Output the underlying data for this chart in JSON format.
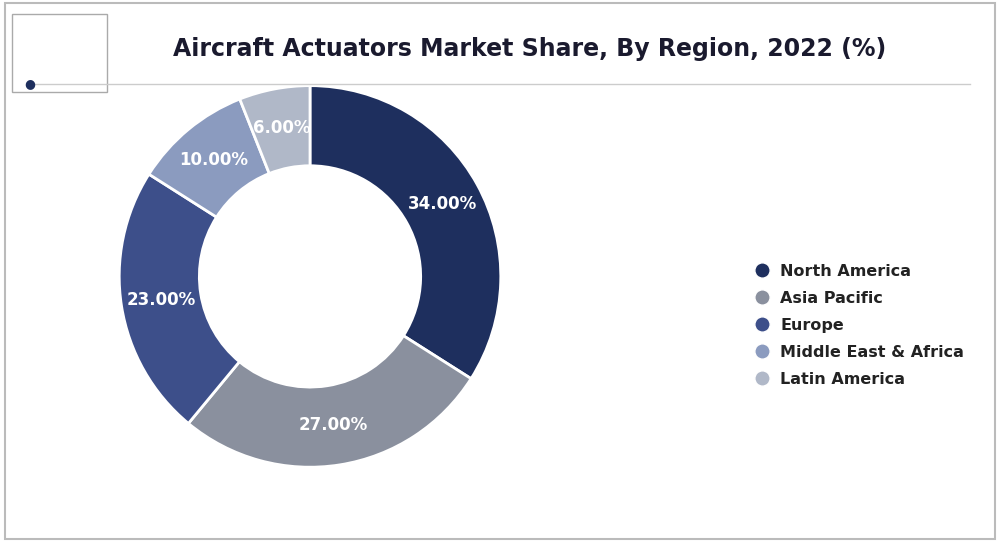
{
  "title": "Aircraft Actuators Market Share, By Region, 2022 (%)",
  "title_fontsize": 17,
  "background_color": "#ffffff",
  "border_color": "#cccccc",
  "labels": [
    "North America",
    "Asia Pacific",
    "Europe",
    "Middle East & Africa",
    "Latin America"
  ],
  "values": [
    34.0,
    27.0,
    23.0,
    10.0,
    6.0
  ],
  "pct_labels": [
    "34.00%",
    "27.00%",
    "23.00%",
    "10.00%",
    "6.00%"
  ],
  "colors": [
    "#1e2f5e",
    "#8a909e",
    "#3d4f8a",
    "#8b9bbf",
    "#b0b8c8"
  ],
  "legend_labels": [
    "North America",
    "Asia Pacific",
    "Europe",
    "Middle East & Africa",
    "Latin America"
  ],
  "wedge_edge_color": "#ffffff",
  "label_color": "#ffffff",
  "label_fontsize": 12,
  "donut_width": 0.42,
  "start_angle": 90
}
